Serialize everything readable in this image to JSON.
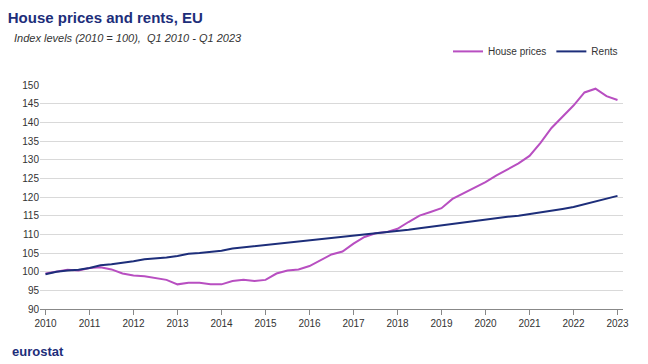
{
  "chart_data": {
    "type": "line",
    "title": "House prices and rents, EU",
    "subtitle": "Index levels (2010 = 100),  Q1 2010 - Q1 2023",
    "footer": "eurostat",
    "categories": [
      "2010",
      null,
      null,
      null,
      "2011",
      null,
      null,
      null,
      "2012",
      null,
      null,
      null,
      "2013",
      null,
      null,
      null,
      "2014",
      null,
      null,
      null,
      "2015",
      null,
      null,
      null,
      "2016",
      null,
      null,
      null,
      "2017",
      null,
      null,
      null,
      "2018",
      null,
      null,
      null,
      "2019",
      null,
      null,
      null,
      "2020",
      null,
      null,
      null,
      "2021",
      null,
      null,
      null,
      "2022",
      null,
      null,
      null,
      "2023"
    ],
    "series": [
      {
        "name": "House prices",
        "color": "#b84fc1",
        "values": [
          99.5,
          100,
          100.5,
          100.3,
          101,
          101.2,
          100.6,
          99.5,
          99,
          98.8,
          98.4,
          97.8,
          96.6,
          97,
          97,
          96.6,
          96.6,
          97.5,
          97.8,
          97.5,
          97.8,
          99.5,
          100.3,
          100.6,
          101.5,
          103,
          104.6,
          105.4,
          107.5,
          109.3,
          110.3,
          110.6,
          111.5,
          113.3,
          115,
          116,
          117,
          119.5,
          121,
          122.5,
          124,
          125.8,
          127.5,
          129,
          131,
          134.5,
          138.5,
          141.5,
          144.5,
          148,
          149,
          147,
          146
        ]
      },
      {
        "name": "Rents",
        "color": "#1d2e7a",
        "values": [
          99.3,
          100,
          100.3,
          100.5,
          101,
          101.7,
          102,
          102.3,
          102.8,
          103.3,
          103.5,
          103.8,
          104.2,
          104.8,
          105,
          105.3,
          105.6,
          106.2,
          106.5,
          106.8,
          107.1,
          107.5,
          107.8,
          108,
          108.3,
          108.7,
          109,
          109.3,
          109.6,
          110,
          110.3,
          110.5,
          110.8,
          111.2,
          111.6,
          112,
          112.4,
          112.9,
          113.3,
          113.7,
          114,
          114.3,
          114.7,
          115,
          115.4,
          115.8,
          116.2,
          116.8,
          117.3,
          118,
          118.9,
          119.5,
          120.3
        ]
      }
    ],
    "ylim": [
      90,
      150
    ],
    "yticks": [
      90,
      95,
      100,
      105,
      110,
      115,
      120,
      125,
      130,
      135,
      140,
      145,
      150
    ],
    "grid": true,
    "legend": "top-right"
  }
}
